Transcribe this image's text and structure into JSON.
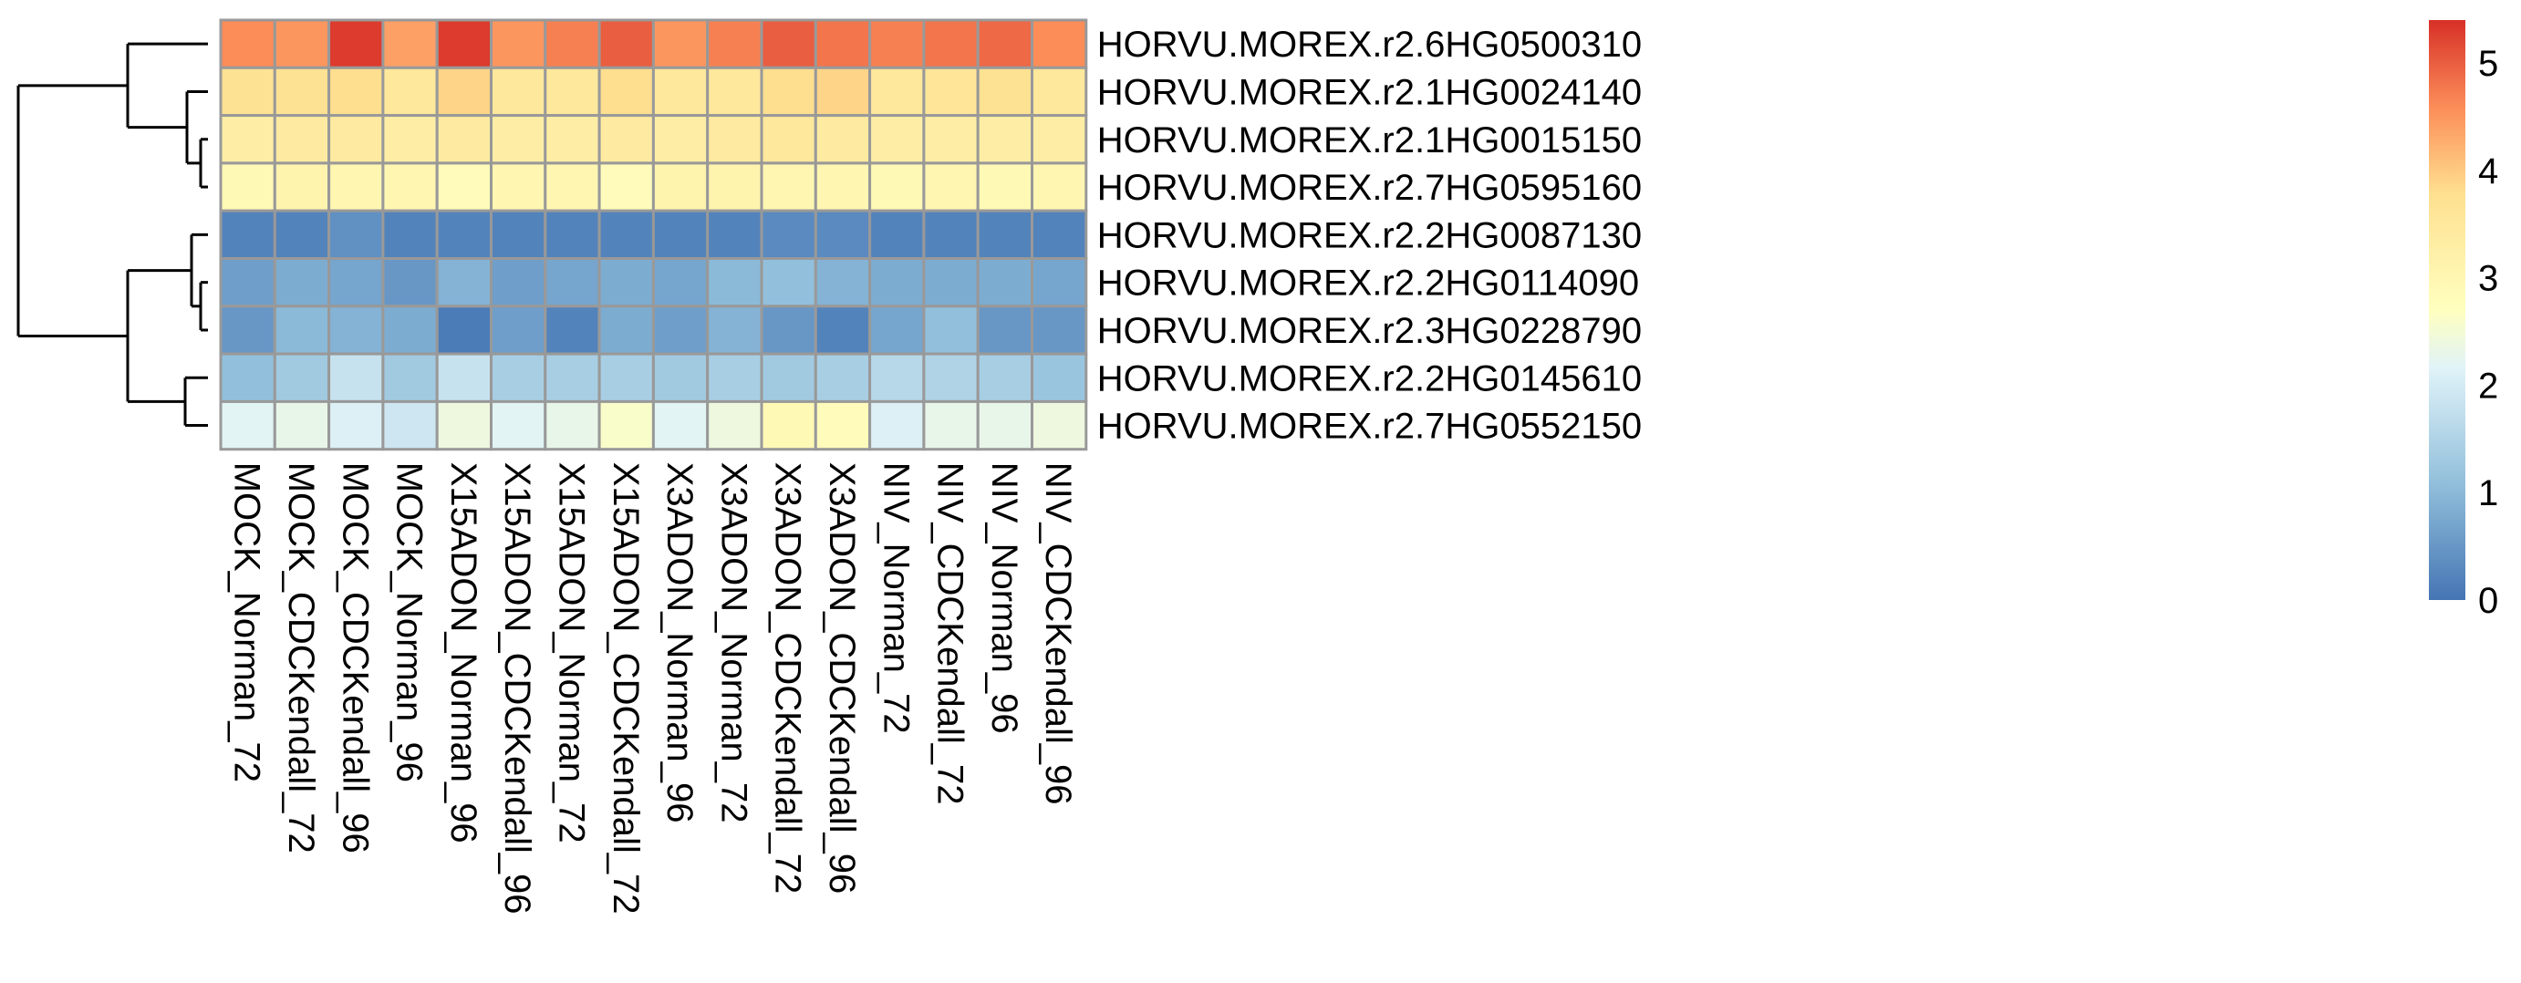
{
  "chart_data": {
    "type": "heatmap",
    "columns": [
      "MOCK_Norman_72",
      "MOCK_CDCKendall_72",
      "MOCK_CDCKendall_96",
      "MOCK_Norman_96",
      "X15ADON_Norman_96",
      "X15ADON_CDCKendall_96",
      "X15ADON_Norman_72",
      "X15ADON_CDCKendall_72",
      "X3ADON_Norman_96",
      "X3ADON_Norman_72",
      "X3ADON_CDCKendall_72",
      "X3ADON_CDCKendall_96",
      "NIV_Norman_72",
      "NIV_CDCKendall_72",
      "NIV_Norman_96",
      "NIV_CDCKendall_96"
    ],
    "rows": [
      "HORVU.MOREX.r2.6HG0500310",
      "HORVU.MOREX.r2.1HG0024140",
      "HORVU.MOREX.r2.1HG0015150",
      "HORVU.MOREX.r2.7HG0595160",
      "HORVU.MOREX.r2.2HG0087130",
      "HORVU.MOREX.r2.2HG0114090",
      "HORVU.MOREX.r2.3HG0228790",
      "HORVU.MOREX.r2.2HG0145610",
      "HORVU.MOREX.r2.7HG0552150"
    ],
    "values": [
      [
        4.6,
        4.5,
        5.3,
        4.4,
        5.3,
        4.5,
        4.7,
        5.0,
        4.5,
        4.7,
        5.0,
        4.8,
        4.7,
        4.8,
        4.9,
        4.6
      ],
      [
        3.7,
        3.7,
        3.8,
        3.5,
        3.9,
        3.5,
        3.5,
        3.8,
        3.5,
        3.5,
        3.8,
        3.9,
        3.5,
        3.6,
        3.7,
        3.5
      ],
      [
        3.3,
        3.4,
        3.4,
        3.3,
        3.4,
        3.3,
        3.3,
        3.4,
        3.3,
        3.4,
        3.5,
        3.4,
        3.3,
        3.3,
        3.3,
        3.3
      ],
      [
        2.9,
        3.1,
        3.0,
        3.0,
        2.8,
        3.0,
        3.0,
        2.8,
        3.1,
        3.1,
        3.0,
        3.0,
        2.9,
        3.0,
        2.9,
        3.0
      ],
      [
        0.2,
        0.2,
        0.4,
        0.2,
        0.2,
        0.2,
        0.2,
        0.2,
        0.2,
        0.2,
        0.3,
        0.3,
        0.2,
        0.2,
        0.2,
        0.2
      ],
      [
        0.6,
        0.8,
        0.7,
        0.5,
        0.9,
        0.6,
        0.7,
        0.8,
        0.7,
        1.0,
        1.1,
        0.9,
        0.8,
        0.8,
        0.8,
        0.7
      ],
      [
        0.5,
        1.0,
        0.9,
        0.8,
        0.1,
        0.6,
        0.2,
        0.8,
        0.6,
        0.9,
        0.5,
        0.2,
        0.7,
        1.1,
        0.5,
        0.5
      ],
      [
        1.1,
        1.3,
        1.8,
        1.3,
        1.8,
        1.4,
        1.4,
        1.4,
        1.3,
        1.4,
        1.3,
        1.4,
        1.6,
        1.5,
        1.4,
        1.2
      ],
      [
        2.2,
        2.3,
        2.1,
        1.9,
        2.4,
        2.2,
        2.3,
        2.6,
        2.2,
        2.4,
        2.9,
        2.8,
        2.1,
        2.3,
        2.3,
        2.4
      ]
    ],
    "colorbar": {
      "ticks": [
        0,
        1,
        2,
        3,
        4,
        5
      ],
      "min": 0,
      "max": 5.4
    },
    "colors": {
      "low": "#4575B4",
      "mid": "#FFFFBF",
      "high": "#D73027",
      "border": "#999999"
    },
    "row_dendrogram": true
  }
}
